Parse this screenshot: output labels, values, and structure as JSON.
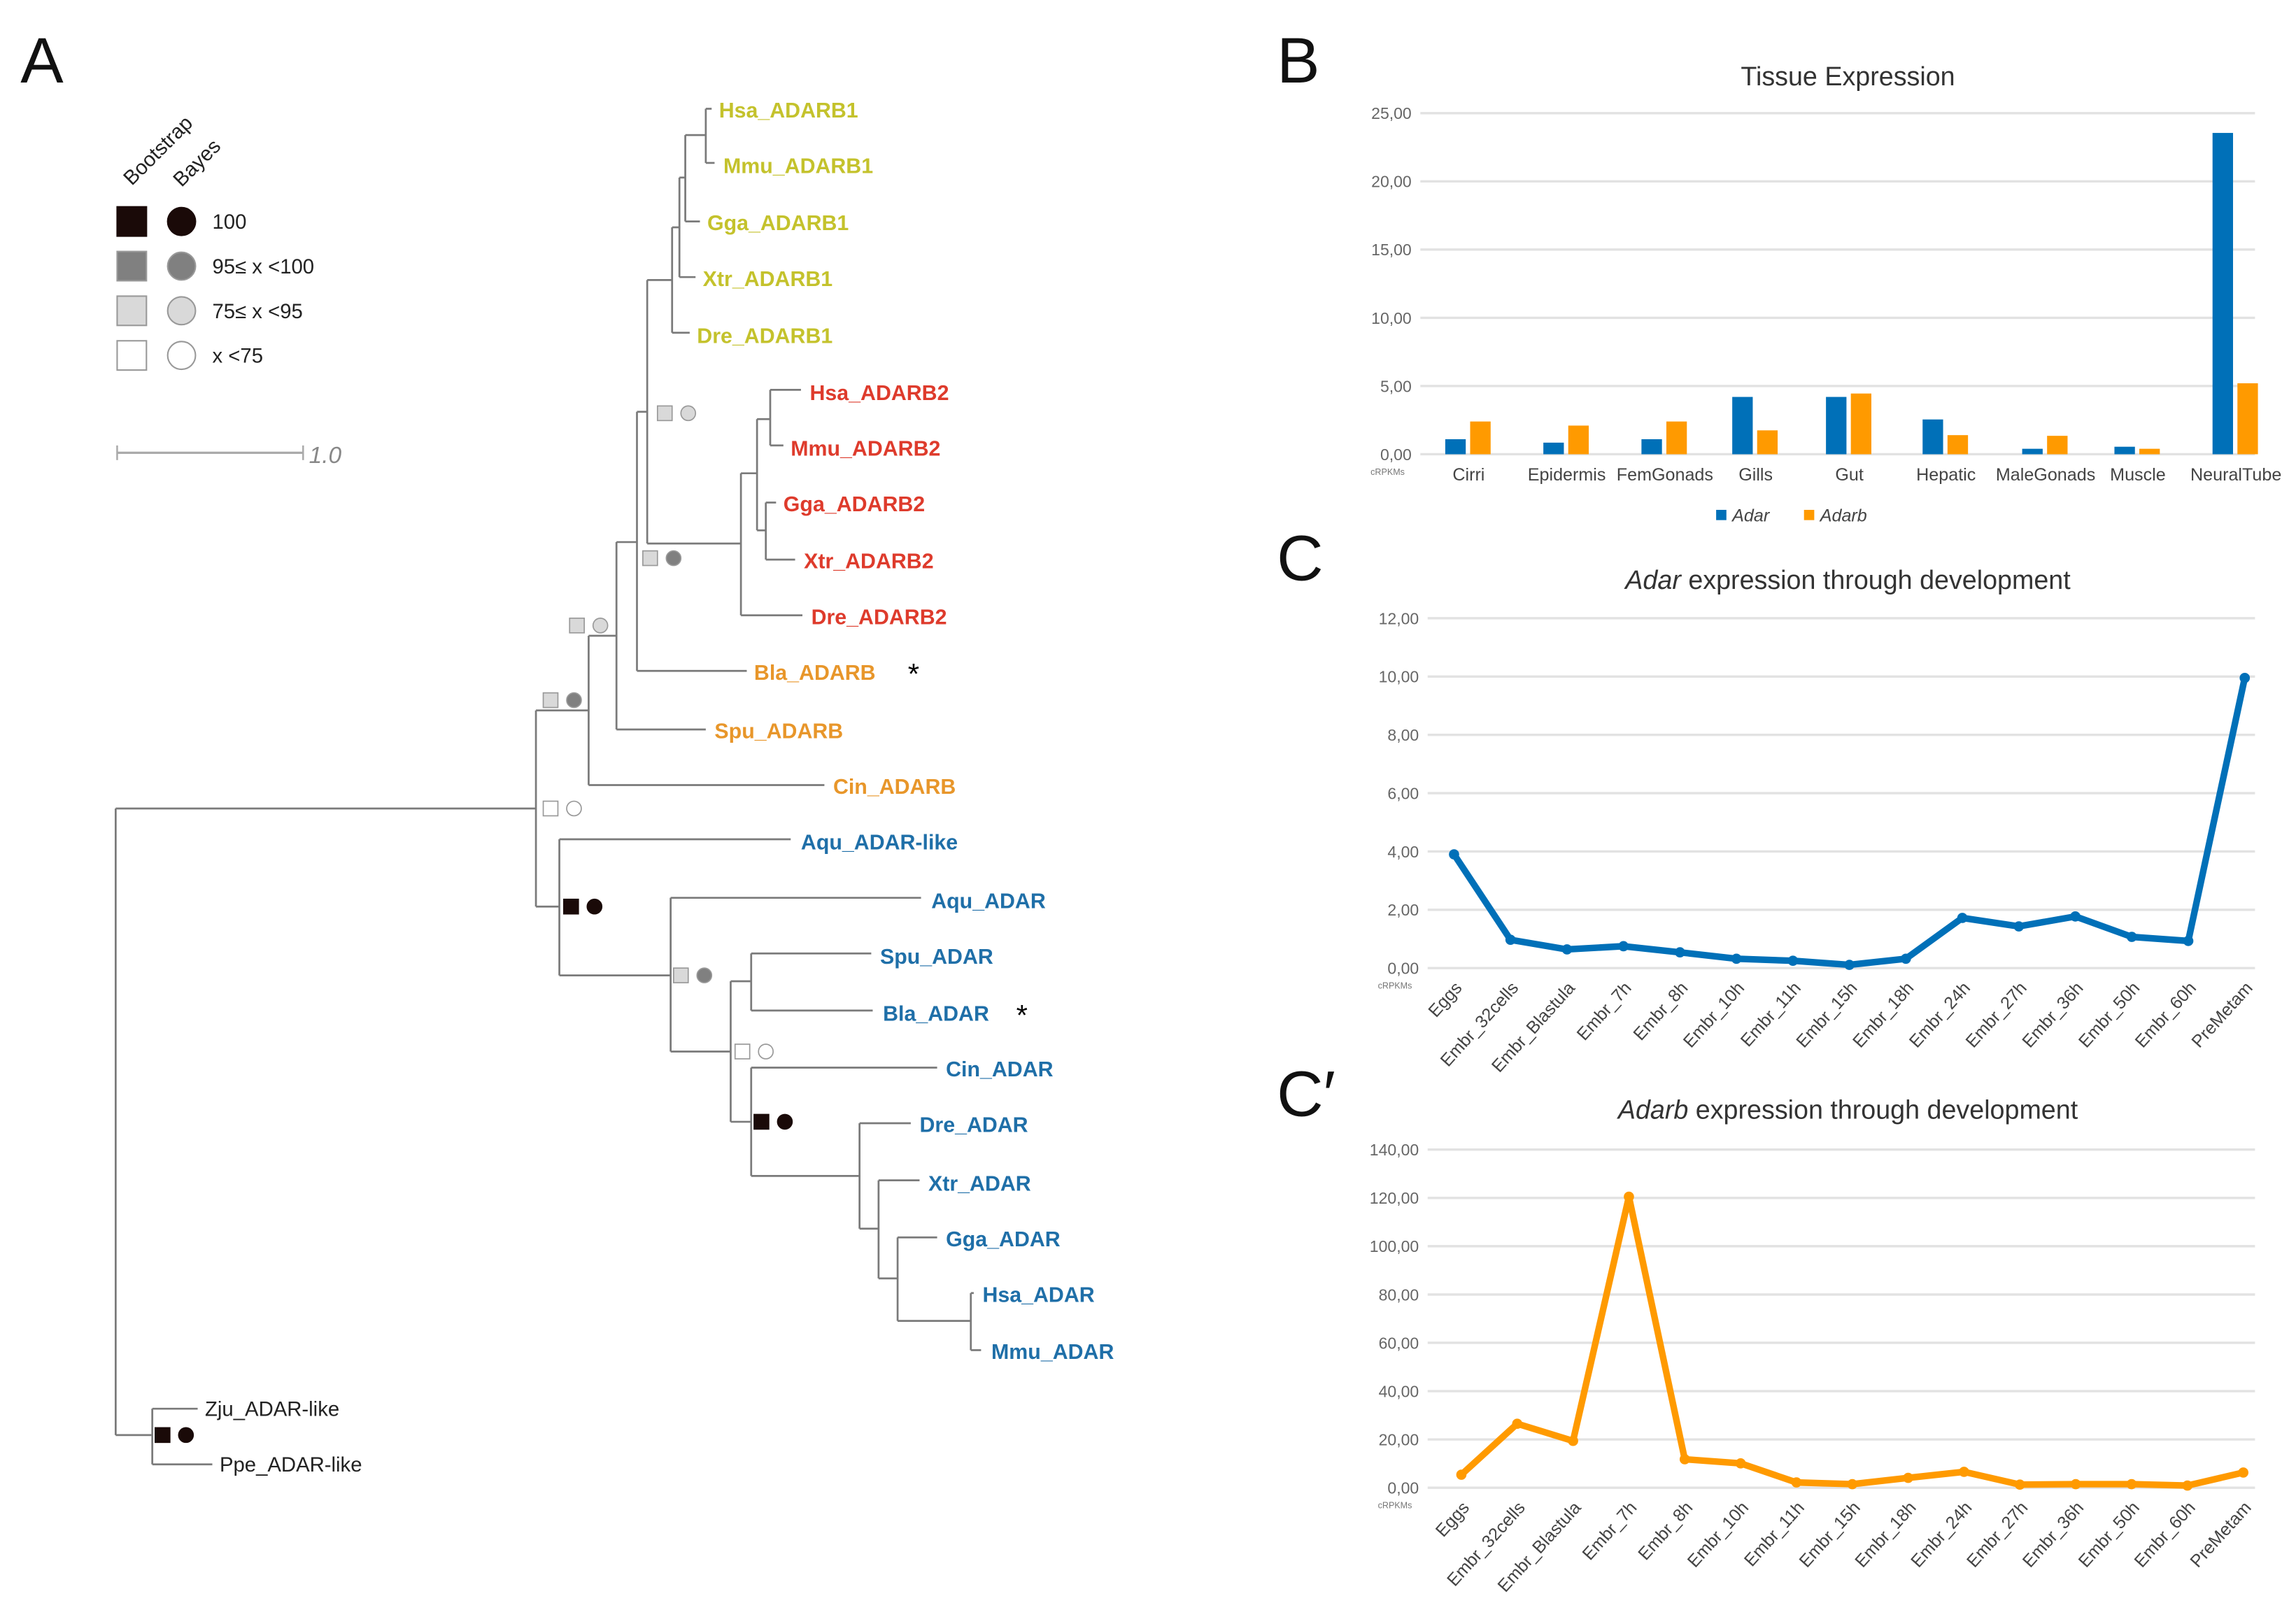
{
  "panels": {
    "a": "A",
    "b": "B",
    "c": "C",
    "c2": "C′"
  },
  "tree": {
    "clade_colors": {
      "adarb1": "#c4c22c",
      "adarb2": "#de3b2c",
      "adarb": "#e8962a",
      "adar": "#1f6fa8",
      "outgroup": "#222222"
    },
    "leaves": [
      {
        "name": "Hsa_ADARB1",
        "clade": "adarb1"
      },
      {
        "name": "Mmu_ADARB1",
        "clade": "adarb1"
      },
      {
        "name": "Gga_ADARB1",
        "clade": "adarb1"
      },
      {
        "name": "Xtr_ADARB1",
        "clade": "adarb1"
      },
      {
        "name": "Dre_ADARB1",
        "clade": "adarb1"
      },
      {
        "name": "Hsa_ADARB2",
        "clade": "adarb2"
      },
      {
        "name": "Mmu_ADARB2",
        "clade": "adarb2"
      },
      {
        "name": "Gga_ADARB2",
        "clade": "adarb2"
      },
      {
        "name": "Xtr_ADARB2",
        "clade": "adarb2"
      },
      {
        "name": "Dre_ADARB2",
        "clade": "adarb2"
      },
      {
        "name": "Bla_ADARB",
        "clade": "adarb",
        "star": "*"
      },
      {
        "name": "Spu_ADARB",
        "clade": "adarb"
      },
      {
        "name": "Cin_ADARB",
        "clade": "adarb"
      },
      {
        "name": "Aqu_ADAR-like",
        "clade": "adar"
      },
      {
        "name": "Aqu_ADAR",
        "clade": "adar"
      },
      {
        "name": "Spu_ADAR",
        "clade": "adar"
      },
      {
        "name": "Bla_ADAR",
        "clade": "adar",
        "star": "*"
      },
      {
        "name": "Cin_ADAR",
        "clade": "adar"
      },
      {
        "name": "Dre_ADAR",
        "clade": "adar"
      },
      {
        "name": "Xtr_ADAR",
        "clade": "adar"
      },
      {
        "name": "Gga_ADAR",
        "clade": "adar"
      },
      {
        "name": "Hsa_ADAR",
        "clade": "adar"
      },
      {
        "name": "Mmu_ADAR",
        "clade": "adar"
      },
      {
        "name": "Zju_ADAR-like",
        "clade": "outgroup"
      },
      {
        "name": "Ppe_ADAR-like",
        "clade": "outgroup"
      }
    ],
    "node_support": [
      {
        "bootstrap": "75-95",
        "bayes": "75-95"
      },
      {
        "bootstrap": "75-95",
        "bayes": "95-100"
      },
      {
        "bootstrap": "75-95",
        "bayes": "75-95"
      },
      {
        "bootstrap": "75-95",
        "bayes": "95-100"
      },
      {
        "bootstrap": "<75",
        "bayes": "<75"
      },
      {
        "bootstrap": "100",
        "bayes": "100"
      },
      {
        "bootstrap": "75-95",
        "bayes": "95-100"
      },
      {
        "bootstrap": "<75",
        "bayes": "<75"
      },
      {
        "bootstrap": "100",
        "bayes": "100"
      },
      {
        "bootstrap": "100",
        "bayes": "100"
      }
    ],
    "legend": {
      "bootstrap_label": "Bootstrap",
      "bayes_label": "Bayes",
      "levels": [
        {
          "key": "100",
          "label": "100",
          "fill": "#1a0a08"
        },
        {
          "key": "95-100",
          "label": "95≤ x <100",
          "fill": "#808080"
        },
        {
          "key": "75-95",
          "label": "75≤ x <95",
          "fill": "#d9d9d9"
        },
        {
          "key": "<75",
          "label": "x <75",
          "fill": "#ffffff"
        }
      ]
    },
    "scale_bar_label": "1.0"
  },
  "chart_data": [
    {
      "type": "bar",
      "title": "Tissue Expression",
      "ylabel": "cRPKMs",
      "ylim": [
        0,
        25
      ],
      "yticks": [
        "0,00",
        "5,00",
        "10,00",
        "15,00",
        "20,00",
        "25,00"
      ],
      "grid": true,
      "legend_position": "bottom",
      "categories": [
        "Cirri",
        "Epidermis",
        "FemGonads",
        "Gills",
        "Gut",
        "Hepatic",
        "MaleGonads",
        "Muscle",
        "NeuralTube"
      ],
      "series": [
        {
          "name": "Adar",
          "color": "#0070b8",
          "values": [
            1.1,
            0.85,
            1.1,
            4.2,
            4.2,
            2.55,
            0.4,
            0.55,
            23.55
          ]
        },
        {
          "name": "Adarb",
          "color": "#ff9a00",
          "values": [
            2.4,
            2.1,
            2.4,
            1.75,
            4.45,
            1.4,
            1.35,
            0.4,
            5.2
          ]
        }
      ]
    },
    {
      "type": "line",
      "title_italic": "Adar",
      "title_rest": " expression through development",
      "ylabel": "cRPKMs",
      "ylim": [
        0,
        12
      ],
      "yticks": [
        "0,00",
        "2,00",
        "4,00",
        "6,00",
        "8,00",
        "10,00",
        "12,00"
      ],
      "grid": true,
      "color": "#0070b8",
      "categories": [
        "Eggs",
        "Embr_32cells",
        "Embr_Blastula",
        "Embr_7h",
        "Embr_8h",
        "Embr_10h",
        "Embr_11h",
        "Embr_15h",
        "Embr_18h",
        "Embr_24h",
        "Embr_27h",
        "Embr_36h",
        "Embr_50h",
        "Embr_60h",
        "PreMetam"
      ],
      "values": [
        3.9,
        0.97,
        0.64,
        0.75,
        0.54,
        0.32,
        0.25,
        0.11,
        0.32,
        1.72,
        1.43,
        1.77,
        1.07,
        0.93,
        9.95
      ]
    },
    {
      "type": "line",
      "title_italic": "Adarb",
      "title_rest": " expression through development",
      "ylabel": "cRPKMs",
      "ylim": [
        0,
        140
      ],
      "yticks": [
        "0,00",
        "20,00",
        "40,00",
        "60,00",
        "80,00",
        "100,00",
        "120,00",
        "140,00"
      ],
      "grid": true,
      "color": "#ff9a00",
      "categories": [
        "Eggs",
        "Embr_32cells",
        "Embr_Blastula",
        "Embr_7h",
        "Embr_8h",
        "Embr_10h",
        "Embr_11h",
        "Embr_15h",
        "Embr_18h",
        "Embr_24h",
        "Embr_27h",
        "Embr_36h",
        "Embr_50h",
        "Embr_60h",
        "PreMetam"
      ],
      "values": [
        5.4,
        26.5,
        19.4,
        120.5,
        11.8,
        10.1,
        2.2,
        1.5,
        4.1,
        6.6,
        1.3,
        1.5,
        1.5,
        0.9,
        6.3
      ]
    }
  ]
}
